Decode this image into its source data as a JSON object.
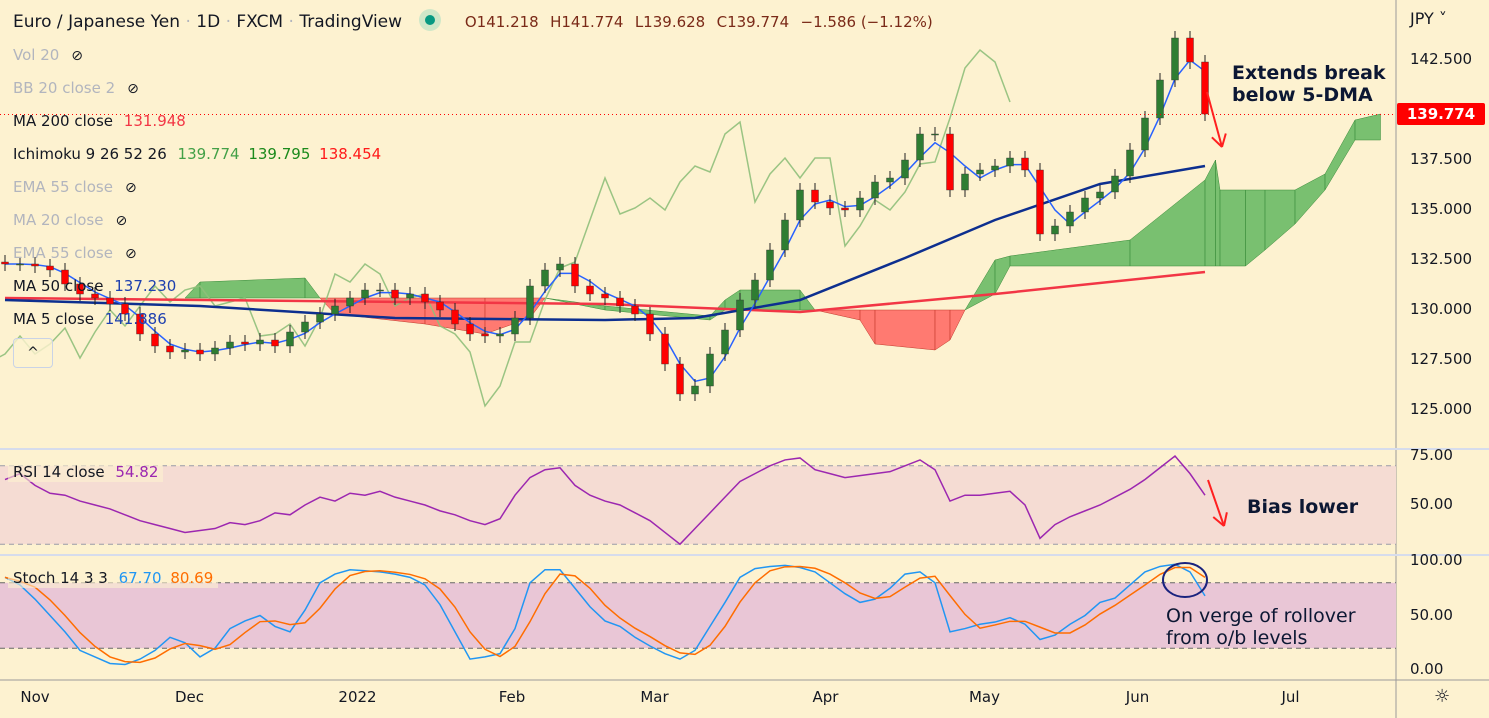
{
  "header": {
    "symbol": "Euro / Japanese Yen",
    "sep": "·",
    "interval": "1D",
    "exchange": "FXCM",
    "platform": "TradingView",
    "open": "O141.218",
    "high": "H141.774",
    "low": "L139.628",
    "close": "C139.774",
    "change": "−1.586 (−1.12%)"
  },
  "legend": {
    "vol": "Vol 20",
    "bb": "BB 20 close 2",
    "ma200": "MA 200 close",
    "ma200_val": "131.948",
    "ichimoku": "Ichimoku 9 26 52 26",
    "ichi_v1": "139.774",
    "ichi_v2": "139.795",
    "ichi_v3": "138.454",
    "ema55a": "EMA 55 close",
    "ma20": "MA 20 close",
    "ema55b": "EMA 55 close",
    "ma50": "MA 50 close",
    "ma50_val": "137.230",
    "ma5": "MA 5 close",
    "ma5_val": "141.886",
    "collapse": "^",
    "hidden_icon": "eye-off-icon"
  },
  "rsi_legend": {
    "label": "RSI 14 close",
    "value": "54.82"
  },
  "stoch_legend": {
    "label": "Stoch 14 3 3",
    "k": "67.70",
    "d": "80.69"
  },
  "axis": {
    "currency": "JPY ˅",
    "last_price": "139.774",
    "settings_icon": "☼"
  },
  "annotations": {
    "break_line1": "Extends break",
    "break_line2": "below 5-DMA",
    "bias": "Bias lower",
    "roll1": "On verge of rollover",
    "roll2": "from o/b levels"
  },
  "colors": {
    "up": "#2e7d32",
    "down": "#ff0000",
    "ma50": "#0d2f8f",
    "ma200": "#f23645",
    "ma5": "#2962ff",
    "lag": "#8fbf7a",
    "cloud_up": "#4caf50",
    "cloud_down": "#ff5252",
    "rsi": "#9c27b0",
    "k": "#2196f3",
    "d": "#ff6d00"
  },
  "chart_data": {
    "type": "candlestick",
    "title": "Euro / Japanese Yen · 1D · FXCM",
    "ylim": [
      123.5,
      144.5
    ],
    "y_ticks": [
      "142.500",
      "137.500",
      "135.000",
      "132.500",
      "130.000",
      "127.500",
      "125.000"
    ],
    "y_tick_values": [
      142.5,
      137.5,
      135,
      132.5,
      130,
      127.5,
      125
    ],
    "x_labels": [
      {
        "label": "Nov",
        "at_bar": 2
      },
      {
        "label": "Dec",
        "at_bar": 12.3
      },
      {
        "label": "2022",
        "at_bar": 23.5
      },
      {
        "label": "Feb",
        "at_bar": 33.8
      },
      {
        "label": "Mar",
        "at_bar": 43.3
      },
      {
        "label": "Apr",
        "at_bar": 54.7
      },
      {
        "label": "May",
        "at_bar": 65.3
      },
      {
        "label": "Jun",
        "at_bar": 75.5
      },
      {
        "label": "Jul",
        "at_bar": 85.7
      }
    ],
    "closes": [
      132.3,
      132.3,
      132.2,
      132.0,
      131.3,
      130.8,
      130.6,
      130.3,
      129.8,
      128.8,
      128.2,
      127.9,
      128.0,
      127.8,
      128.1,
      128.4,
      128.3,
      128.5,
      128.2,
      128.9,
      129.4,
      129.8,
      130.2,
      130.6,
      131.0,
      131.0,
      130.6,
      130.8,
      130.4,
      130.0,
      129.3,
      128.8,
      128.7,
      128.8,
      129.6,
      131.2,
      132.0,
      132.3,
      131.2,
      130.8,
      130.6,
      130.2,
      129.8,
      128.8,
      127.3,
      125.8,
      126.2,
      127.8,
      129.0,
      130.5,
      131.5,
      133.0,
      134.5,
      136.0,
      135.4,
      135.1,
      135.0,
      135.6,
      136.4,
      136.6,
      137.5,
      138.8,
      138.8,
      136.0,
      136.8,
      137.0,
      137.2,
      137.6,
      137.0,
      133.8,
      134.2,
      134.9,
      135.6,
      135.9,
      136.7,
      138.0,
      139.6,
      141.5,
      143.6,
      142.4,
      139.8
    ],
    "ma50": [
      [
        0,
        130.5
      ],
      [
        13,
        130.2
      ],
      [
        26,
        129.6
      ],
      [
        40,
        129.5
      ],
      [
        46,
        129.6
      ],
      [
        53,
        130.5
      ],
      [
        60,
        132.6
      ],
      [
        66,
        134.5
      ],
      [
        73,
        136.3
      ],
      [
        80,
        137.2
      ]
    ],
    "ma200": [
      [
        0,
        130.6
      ],
      [
        40,
        130.3
      ],
      [
        53,
        129.9
      ],
      [
        66,
        130.8
      ],
      [
        80,
        131.9
      ]
    ],
    "cloud": [
      [
        12,
        130.6,
        130.6
      ],
      [
        13,
        131.4,
        130.6
      ],
      [
        20,
        131.6,
        130.6
      ],
      [
        21,
        130.6,
        130.6
      ],
      [
        22,
        129.8,
        130.6
      ],
      [
        28,
        129.3,
        130.6
      ],
      [
        32,
        128.8,
        130.6
      ],
      [
        35,
        129.6,
        130.6
      ],
      [
        36,
        130.6,
        130.6
      ],
      [
        40,
        130.2,
        130.0
      ],
      [
        47,
        129.7,
        129.5
      ],
      [
        48,
        130.5,
        130.0
      ],
      [
        49,
        131.0,
        130.0
      ],
      [
        53,
        131.0,
        130.0
      ],
      [
        54,
        130.0,
        130.0
      ],
      [
        57,
        129.5,
        130.0
      ],
      [
        58,
        128.3,
        130.0
      ],
      [
        62,
        128.0,
        130.0
      ],
      [
        63,
        128.5,
        130.0
      ],
      [
        64,
        130.0,
        130.0
      ],
      [
        66,
        132.5,
        130.8
      ],
      [
        67,
        132.7,
        132.2
      ],
      [
        75,
        133.5,
        132.2
      ],
      [
        80,
        136.5,
        132.2
      ],
      [
        80.7,
        137.5,
        132.2
      ],
      [
        81,
        136.0,
        132.2
      ],
      [
        82.7,
        136.0,
        132.2
      ],
      [
        84,
        136.0,
        133.0
      ],
      [
        86,
        136.0,
        134.3
      ],
      [
        88,
        136.8,
        136.0
      ],
      [
        90,
        139.5,
        138.5
      ],
      [
        91.7,
        139.8,
        138.5
      ]
    ],
    "lag_shift_bars": 13,
    "rsi": {
      "ylim": [
        25,
        80
      ],
      "ticks": [
        "75.00",
        "50.00"
      ],
      "tick_values": [
        75,
        50
      ],
      "bands": [
        70,
        30
      ],
      "values": [
        63,
        66,
        60,
        56,
        55,
        52,
        50,
        48,
        45,
        42,
        40,
        38,
        36,
        37,
        38,
        41,
        40,
        42,
        46,
        45,
        50,
        54,
        52,
        56,
        55,
        57,
        54,
        52,
        50,
        47,
        45,
        42,
        40,
        43,
        55,
        64,
        68,
        69,
        60,
        55,
        52,
        50,
        46,
        42,
        36,
        30,
        38,
        46,
        54,
        62,
        66,
        70,
        73,
        74,
        68,
        66,
        64,
        65,
        66,
        67,
        70,
        73,
        68,
        52,
        55,
        55,
        56,
        57,
        50,
        33,
        40,
        44,
        47,
        50,
        54,
        58,
        63,
        69,
        75,
        66,
        55
      ]
    },
    "stoch": {
      "ylim": [
        0,
        100
      ],
      "ticks": [
        "100.00",
        "50.00",
        "0.00"
      ],
      "tick_values": [
        100,
        50,
        0
      ],
      "bands": [
        80,
        20
      ],
      "k": [
        85,
        78,
        65,
        50,
        35,
        18,
        12,
        6,
        5,
        10,
        18,
        30,
        25,
        12,
        20,
        38,
        45,
        50,
        40,
        35,
        55,
        80,
        88,
        92,
        91,
        90,
        88,
        85,
        78,
        60,
        35,
        10,
        12,
        15,
        38,
        80,
        92,
        92,
        75,
        58,
        45,
        40,
        30,
        22,
        15,
        10,
        18,
        40,
        62,
        85,
        93,
        95,
        96,
        94,
        90,
        80,
        70,
        62,
        65,
        75,
        88,
        90,
        80,
        35,
        38,
        42,
        44,
        48,
        42,
        28,
        32,
        42,
        50,
        62,
        66,
        78,
        90,
        95,
        97,
        90,
        68
      ]
    }
  }
}
